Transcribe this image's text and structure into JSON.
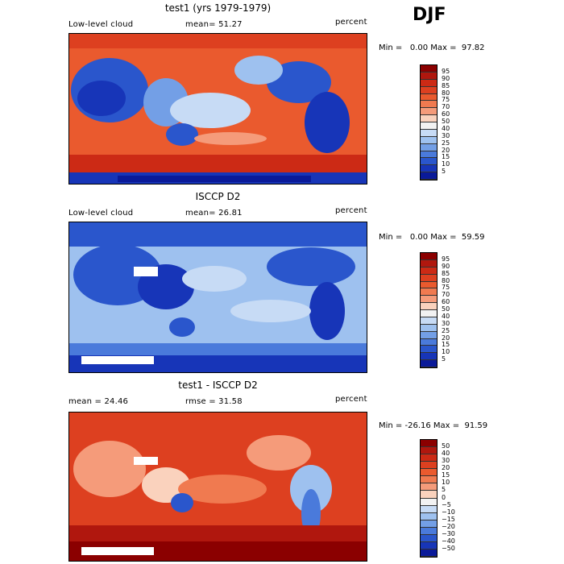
{
  "season": "DJF",
  "panels": [
    {
      "title": "test1 (yrs 1979-1979)",
      "left_label": "Low-level cloud",
      "mid_label": "mean=  51.27",
      "units": "percent",
      "minmax": "Min =   0.00 Max =  97.82",
      "ticks": [
        "95",
        "90",
        "85",
        "80",
        "75",
        "70",
        "60",
        "50",
        "40",
        "30",
        "25",
        "20",
        "15",
        "10",
        "5"
      ],
      "colors": [
        "#8b0000",
        "#b0170e",
        "#cc2a15",
        "#dd4020",
        "#ea5a2e",
        "#f07a50",
        "#f59b7a",
        "#fad2bd",
        "#f2f2f2",
        "#c7dbf5",
        "#9ec1ef",
        "#739fe6",
        "#4a7adb",
        "#2a56cc",
        "#1735b8",
        "#0a1a99"
      ]
    },
    {
      "title": "ISCCP D2",
      "left_label": "Low-level cloud",
      "mid_label": "mean=  26.81",
      "units": "percent",
      "minmax": "Min =   0.00 Max =  59.59",
      "ticks": [
        "95",
        "90",
        "85",
        "80",
        "75",
        "70",
        "60",
        "50",
        "40",
        "30",
        "25",
        "20",
        "15",
        "10",
        "5"
      ],
      "colors": [
        "#8b0000",
        "#b0170e",
        "#cc2a15",
        "#dd4020",
        "#ea5a2e",
        "#f07a50",
        "#f59b7a",
        "#fad2bd",
        "#f2f2f2",
        "#c7dbf5",
        "#9ec1ef",
        "#739fe6",
        "#4a7adb",
        "#2a56cc",
        "#1735b8",
        "#0a1a99"
      ]
    },
    {
      "title": "test1 - ISCCP D2",
      "left_label": "mean =  24.46",
      "mid_label": "rmse =  31.58",
      "units": "percent",
      "minmax": "Min = -26.16 Max =  91.59",
      "ticks": [
        "50",
        "40",
        "30",
        "20",
        "15",
        "10",
        "5",
        "0",
        "−5",
        "−10",
        "−15",
        "−20",
        "−30",
        "−40",
        "−50"
      ],
      "colors": [
        "#8b0000",
        "#b0170e",
        "#cc2a15",
        "#dd4020",
        "#ea5a2e",
        "#f07a50",
        "#f59b7a",
        "#fad2bd",
        "#f2f2f2",
        "#c7dbf5",
        "#9ec1ef",
        "#739fe6",
        "#4a7adb",
        "#2a56cc",
        "#1735b8",
        "#0a1a99"
      ]
    }
  ]
}
